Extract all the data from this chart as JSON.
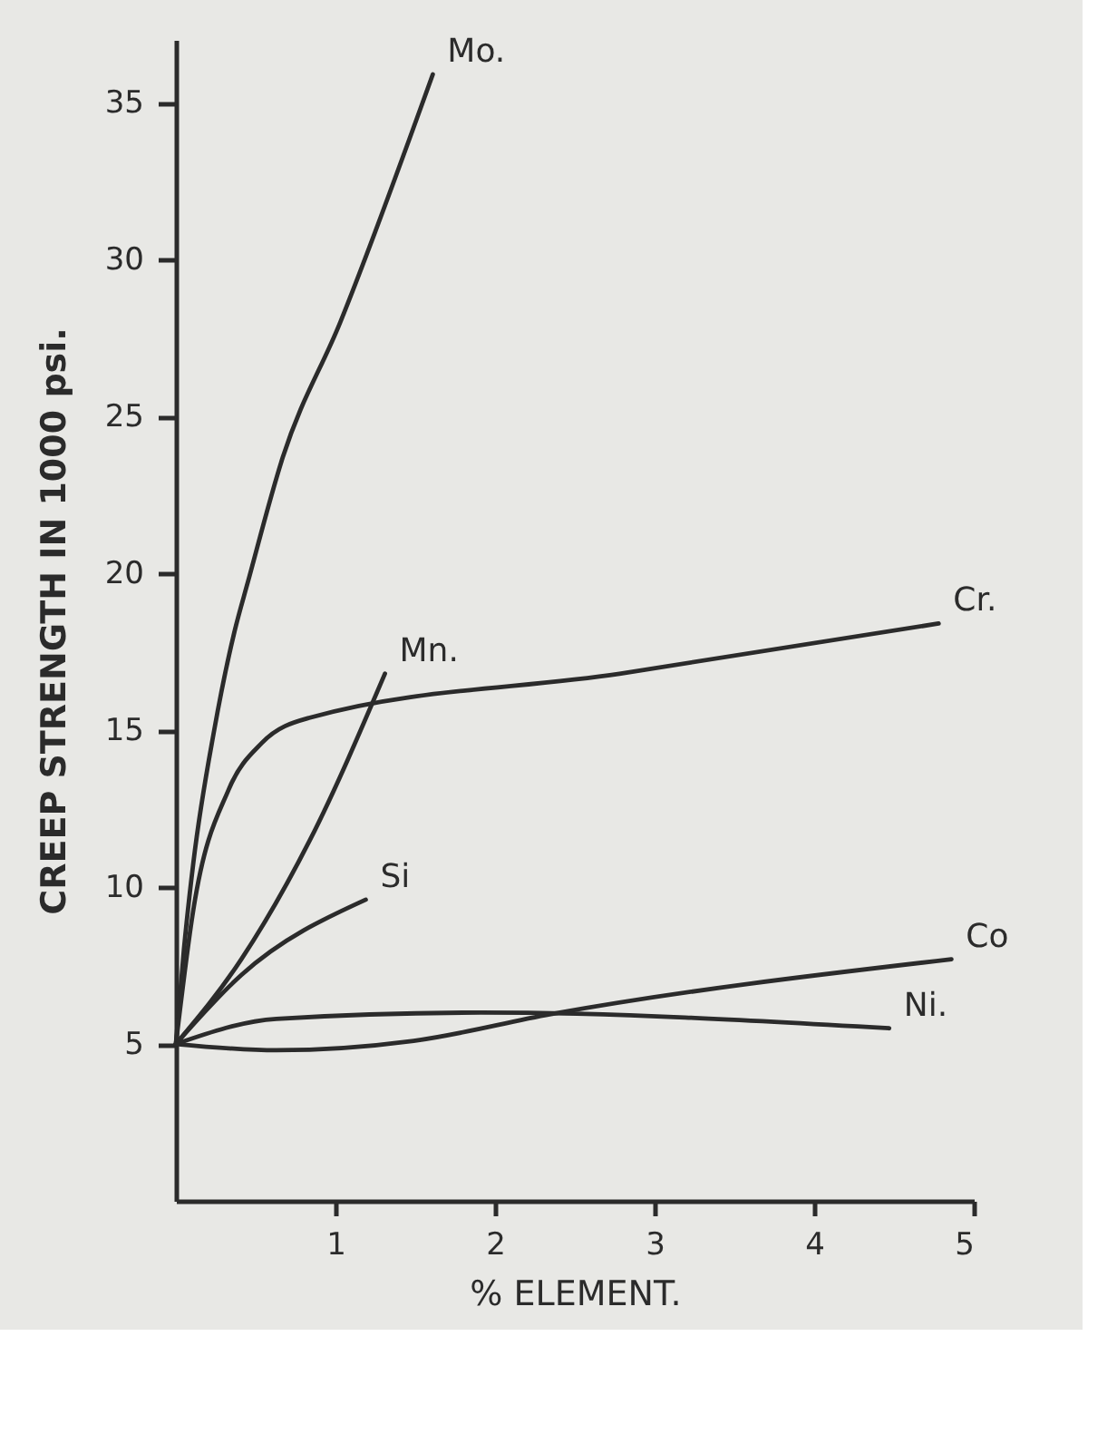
{
  "chart_data": {
    "type": "line",
    "xlabel": "% ELEMENT.",
    "ylabel": "CREEP STRENGTH IN 1000 psi.",
    "xlim": [
      0,
      5
    ],
    "xticks": [
      1,
      2,
      3,
      4,
      5
    ],
    "ylim": [
      0,
      37
    ],
    "yticks": [
      5,
      10,
      15,
      20,
      25,
      30,
      35
    ],
    "grid": false,
    "legend": false,
    "marker": "none",
    "line_style": "solid",
    "series": [
      {
        "name": "Mo.",
        "color": "#2b2b2b",
        "x": [
          0,
          0.05,
          0.11,
          0.24,
          0.37,
          0.45,
          0.67,
          1.03,
          1.61
        ],
        "values": [
          5,
          8,
          10.8,
          15,
          18.2,
          19.7,
          23.7,
          28,
          35.9
        ]
      },
      {
        "name": "Cr.",
        "color": "#2b2b2b",
        "x": [
          0,
          0.11,
          0.33,
          0.54,
          0.84,
          2.78,
          4.78
        ],
        "values": [
          5,
          9.3,
          13.1,
          14.6,
          15.4,
          16.8,
          18.4
        ]
      },
      {
        "name": "Mn.",
        "color": "#2b2b2b",
        "x": [
          0,
          0.41,
          0.84,
          1.31
        ],
        "values": [
          5,
          7.7,
          11.5,
          16.8
        ]
      },
      {
        "name": "Si",
        "color": "#2b2b2b",
        "x": [
          0,
          0.41,
          1.19
        ],
        "values": [
          5,
          7.2,
          9.6
        ]
      },
      {
        "name": "Co",
        "color": "#2b2b2b",
        "x": [
          0,
          0.63,
          1.49,
          2.35,
          4.86
        ],
        "values": [
          5,
          4.8,
          5.1,
          5.95,
          7.7
        ]
      },
      {
        "name": "Ni.",
        "color": "#2b2b2b",
        "x": [
          0,
          0.63,
          1.91,
          4.47
        ],
        "values": [
          5,
          5.8,
          6.0,
          5.5
        ]
      }
    ]
  }
}
